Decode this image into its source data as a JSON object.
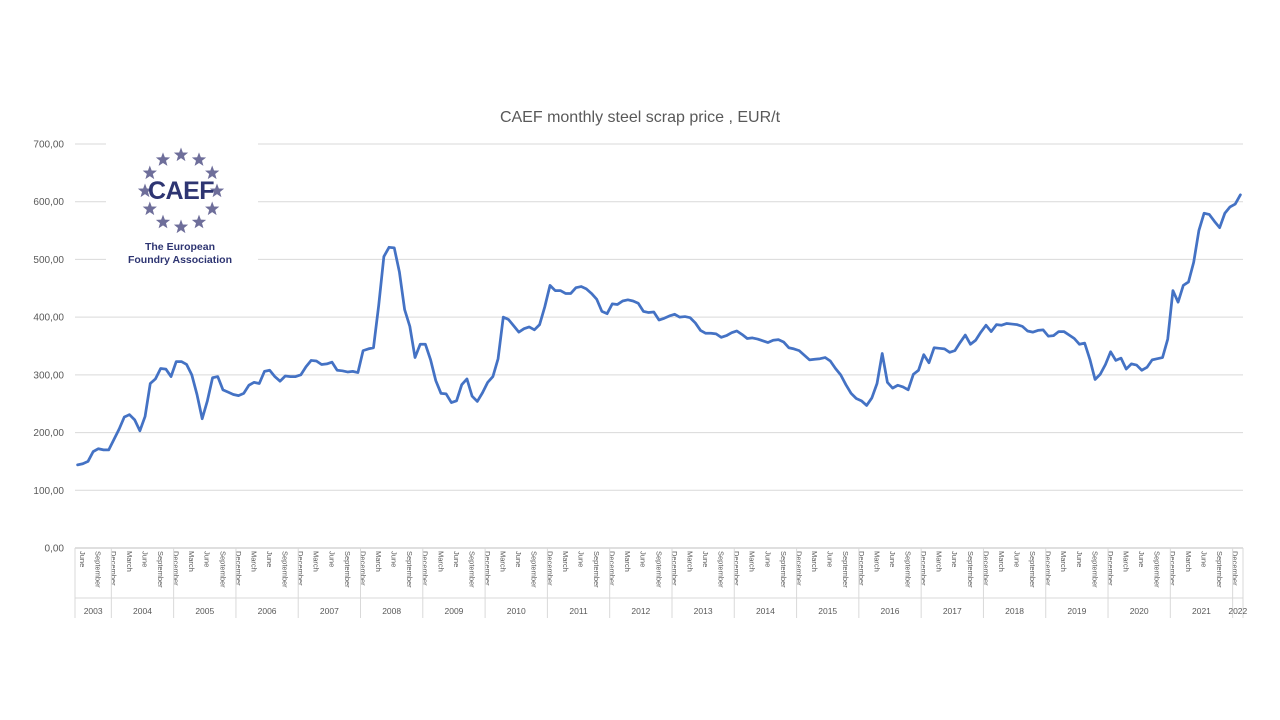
{
  "logo": {
    "abbr": "CAEF",
    "line1": "The European",
    "line2": "Foundry Association",
    "color": "#2e3572",
    "star_color": "#6e6e9a"
  },
  "chart_data": {
    "type": "line",
    "title": "CAEF monthly steel scrap price , EUR/t",
    "xlabel": "",
    "ylabel": "",
    "ylim": [
      0,
      700
    ],
    "yticks": [
      "0,00",
      "100,00",
      "200,00",
      "300,00",
      "400,00",
      "500,00",
      "600,00",
      "700,00"
    ],
    "grid": true,
    "legend": "none",
    "line_color": "#4472c4",
    "start": "2003-06",
    "month_tick_labels": [
      "March",
      "June",
      "September",
      "December"
    ],
    "years": [
      "2003",
      "2004",
      "2005",
      "2006",
      "2007",
      "2008",
      "2009",
      "2010",
      "2011",
      "2012",
      "2013",
      "2014",
      "2015",
      "2016",
      "2017",
      "2018",
      "2019",
      "2020",
      "2021",
      "2022"
    ],
    "values": [
      144,
      146,
      150,
      167,
      172,
      170,
      170,
      188,
      206,
      227,
      231,
      222,
      203,
      228,
      285,
      293,
      311,
      310,
      297,
      323,
      323,
      318,
      300,
      266,
      224,
      255,
      295,
      297,
      274,
      270,
      266,
      264,
      268,
      282,
      287,
      285,
      306,
      308,
      297,
      289,
      298,
      297,
      297,
      300,
      314,
      325,
      324,
      318,
      319,
      322,
      308,
      307,
      305,
      306,
      304,
      342,
      345,
      347,
      420,
      505,
      521,
      520,
      478,
      413,
      384,
      330,
      353,
      353,
      326,
      290,
      268,
      267,
      252,
      255,
      283,
      293,
      263,
      254,
      269,
      287,
      297,
      328,
      400,
      396,
      385,
      374,
      380,
      383,
      378,
      387,
      418,
      455,
      446,
      446,
      441,
      441,
      451,
      453,
      449,
      441,
      431,
      410,
      406,
      423,
      422,
      428,
      430,
      428,
      424,
      410,
      408,
      409,
      395,
      398,
      402,
      405,
      400,
      401,
      399,
      390,
      377,
      372,
      372,
      371,
      365,
      368,
      373,
      376,
      370,
      363,
      364,
      362,
      359,
      356,
      360,
      361,
      357,
      347,
      345,
      342,
      334,
      326,
      327,
      328,
      330,
      324,
      311,
      300,
      283,
      268,
      259,
      255,
      247,
      260,
      285,
      337,
      287,
      277,
      282,
      279,
      274,
      301,
      308,
      335,
      321,
      347,
      346,
      345,
      339,
      342,
      356,
      369,
      353,
      360,
      374,
      386,
      375,
      387,
      386,
      389,
      388,
      387,
      384,
      376,
      374,
      377,
      378,
      367,
      368,
      375,
      375,
      369,
      363,
      353,
      355,
      327,
      292,
      301,
      318,
      340,
      325,
      329,
      310,
      319,
      317,
      308,
      313,
      326,
      328,
      330,
      362,
      446,
      426,
      455,
      461,
      495,
      550,
      580,
      578,
      566,
      555,
      580,
      591,
      596,
      612
    ]
  }
}
